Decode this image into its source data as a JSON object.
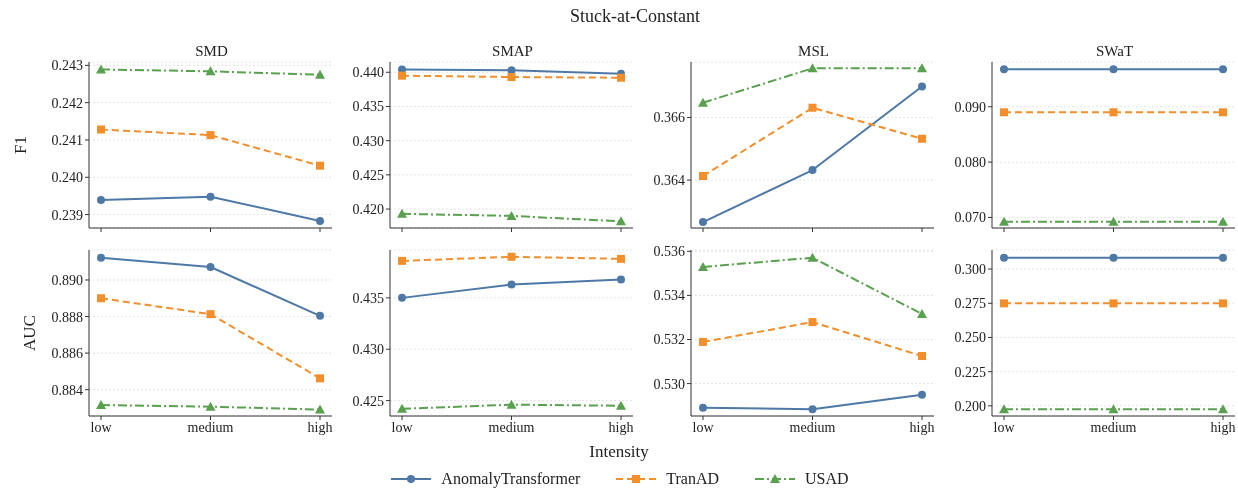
{
  "chart_data": [
    {
      "type": "line",
      "subtitle": "SMD",
      "ylabel": "F1",
      "categories": [
        null,
        null,
        null
      ],
      "ylim": [
        0.23864,
        0.24309
      ],
      "yticks": [
        {
          "value": 0.239,
          "label": "0.239"
        },
        {
          "value": 0.24,
          "label": "0.240"
        },
        {
          "value": 0.241,
          "label": "0.241"
        },
        {
          "value": 0.242,
          "label": "0.242"
        },
        {
          "value": 0.243,
          "label": "0.243"
        }
      ],
      "grid": "y",
      "legend": "bottom",
      "tick_labels": "y",
      "series": [
        {
          "name": "AnomalyTransformer",
          "color": "#4e79a7",
          "marker": "circle",
          "line_style": "solid",
          "values": [
            0.23939,
            0.23948,
            0.23883
          ]
        },
        {
          "name": "TranAD",
          "color": "#f28e2b",
          "marker": "square",
          "line_style": "dashed",
          "values": [
            0.24128,
            0.24113,
            0.24031
          ]
        },
        {
          "name": "USAD",
          "color": "#59a14f",
          "marker": "triangle",
          "line_style": "dashdot",
          "values": [
            0.24289,
            0.24284,
            0.24275
          ]
        }
      ]
    },
    {
      "type": "line",
      "title": "Stuck-at-Constant",
      "subtitle": "SMAP",
      "categories": [
        null,
        null,
        null
      ],
      "ylim": [
        0.41723,
        0.4415
      ],
      "yticks": [
        {
          "value": 0.42,
          "label": "0.420"
        },
        0.425,
        {
          "value": 0.43,
          "label": "0.430"
        },
        0.435,
        {
          "value": 0.44,
          "label": "0.440"
        }
      ],
      "grid": "y",
      "tick_labels": "y",
      "series": [
        {
          "color": "#4e79a7",
          "marker": "circle",
          "line_style": "solid",
          "values": [
            0.4404,
            0.4403,
            0.4398
          ]
        },
        {
          "color": "#f28e2b",
          "marker": "square",
          "line_style": "dashed",
          "values": [
            0.4395,
            0.4393,
            0.4392
          ]
        },
        {
          "color": "#59a14f",
          "marker": "triangle",
          "line_style": "dashdot",
          "values": [
            0.4193,
            0.419,
            0.4182
          ]
        }
      ]
    },
    {
      "type": "line",
      "subtitle": "MSL",
      "categories": [
        null,
        null,
        null
      ],
      "ylim": [
        0.36247,
        0.36777
      ],
      "yticks": [
        0.364,
        0.366
      ],
      "grid": "y",
      "tick_labels": "y",
      "series": [
        {
          "color": "#4e79a7",
          "marker": "circle",
          "line_style": "solid",
          "values": [
            0.36266,
            0.36432,
            0.36699
          ]
        },
        {
          "color": "#f28e2b",
          "marker": "square",
          "line_style": "dashed",
          "values": [
            0.36413,
            0.36631,
            0.36532
          ]
        },
        {
          "color": "#59a14f",
          "marker": "triangle",
          "line_style": "dashdot",
          "values": [
            0.36647,
            0.36757,
            0.36757
          ]
        }
      ]
    },
    {
      "type": "line",
      "subtitle": "SWaT",
      "categories": [
        null,
        null,
        null
      ],
      "ylim": [
        0.06809,
        0.09809
      ],
      "yticks": [
        {
          "value": 0.07,
          "label": "0.070"
        },
        {
          "value": 0.08,
          "label": "0.080"
        },
        {
          "value": 0.09,
          "label": "0.090"
        }
      ],
      "grid": "y",
      "tick_labels": "y",
      "series": [
        {
          "color": "#4e79a7",
          "marker": "circle",
          "line_style": "solid",
          "values": [
            0.0968,
            0.0968,
            0.0968
          ]
        },
        {
          "color": "#f28e2b",
          "marker": "square",
          "line_style": "dashed",
          "values": [
            0.089,
            0.089,
            0.089
          ]
        },
        {
          "color": "#59a14f",
          "marker": "triangle",
          "line_style": "dashdot",
          "values": [
            0.0692,
            0.0692,
            0.0692
          ]
        }
      ]
    },
    {
      "type": "line",
      "ylabel": "AUC",
      "categories": [
        "low",
        "medium",
        "high"
      ],
      "ylim": [
        0.88256,
        0.89164
      ],
      "yticks": [
        0.884,
        0.886,
        0.888,
        {
          "value": 0.89,
          "label": "0.890"
        }
      ],
      "grid": "y",
      "series": [
        {
          "color": "#4e79a7",
          "marker": "circle",
          "line_style": "solid",
          "values": [
            0.89122,
            0.89071,
            0.88804
          ]
        },
        {
          "color": "#f28e2b",
          "marker": "square",
          "line_style": "dashed",
          "values": [
            0.889,
            0.88813,
            0.88462
          ]
        },
        {
          "color": "#59a14f",
          "marker": "triangle",
          "line_style": "dashdot",
          "values": [
            0.88316,
            0.88307,
            0.88291
          ]
        }
      ]
    },
    {
      "type": "line",
      "xlabel": "Intensity",
      "categories": [
        "low",
        "medium",
        "high"
      ],
      "ylim": [
        0.4235,
        0.43966
      ],
      "yticks": [
        0.425,
        {
          "value": 0.43,
          "label": "0.430"
        },
        0.435
      ],
      "grid": "y",
      "series": [
        {
          "color": "#4e79a7",
          "marker": "circle",
          "line_style": "solid",
          "values": [
            0.435,
            0.4363,
            0.4368
          ]
        },
        {
          "color": "#f28e2b",
          "marker": "square",
          "line_style": "dashed",
          "values": [
            0.4386,
            0.439,
            0.4388
          ]
        },
        {
          "color": "#59a14f",
          "marker": "triangle",
          "line_style": "dashdot",
          "values": [
            0.4242,
            0.4246,
            0.4245
          ]
        }
      ]
    },
    {
      "type": "line",
      "categories": [
        "low",
        "medium",
        "high"
      ],
      "ylim": [
        0.52853,
        0.53606
      ],
      "yticks": [
        {
          "value": 0.53,
          "label": "0.530"
        },
        0.532,
        0.534,
        0.536
      ],
      "grid": "y",
      "series": [
        {
          "color": "#4e79a7",
          "marker": "circle",
          "line_style": "solid",
          "values": [
            0.5289,
            0.52884,
            0.52949
          ]
        },
        {
          "color": "#f28e2b",
          "marker": "square",
          "line_style": "dashed",
          "values": [
            0.53189,
            0.53279,
            0.53125
          ]
        },
        {
          "color": "#59a14f",
          "marker": "triangle",
          "line_style": "dashdot",
          "values": [
            0.53529,
            0.53571,
            0.53316
          ]
        }
      ]
    },
    {
      "type": "line",
      "categories": [
        "low",
        "medium",
        "high"
      ],
      "ylim": [
        0.1926,
        0.3139
      ],
      "yticks": [
        {
          "value": 0.2,
          "label": "0.200"
        },
        0.225,
        {
          "value": 0.25,
          "label": "0.250"
        },
        0.275,
        {
          "value": 0.3,
          "label": "0.300"
        }
      ],
      "grid": "y",
      "series": [
        {
          "color": "#4e79a7",
          "marker": "circle",
          "line_style": "solid",
          "values": [
            0.3083,
            0.3083,
            0.3083
          ]
        },
        {
          "color": "#f28e2b",
          "marker": "square",
          "line_style": "dashed",
          "values": [
            0.2749,
            0.2749,
            0.2749
          ]
        },
        {
          "color": "#59a14f",
          "marker": "triangle",
          "line_style": "dashdot",
          "values": [
            0.1976,
            0.1976,
            0.1976
          ]
        }
      ]
    }
  ]
}
